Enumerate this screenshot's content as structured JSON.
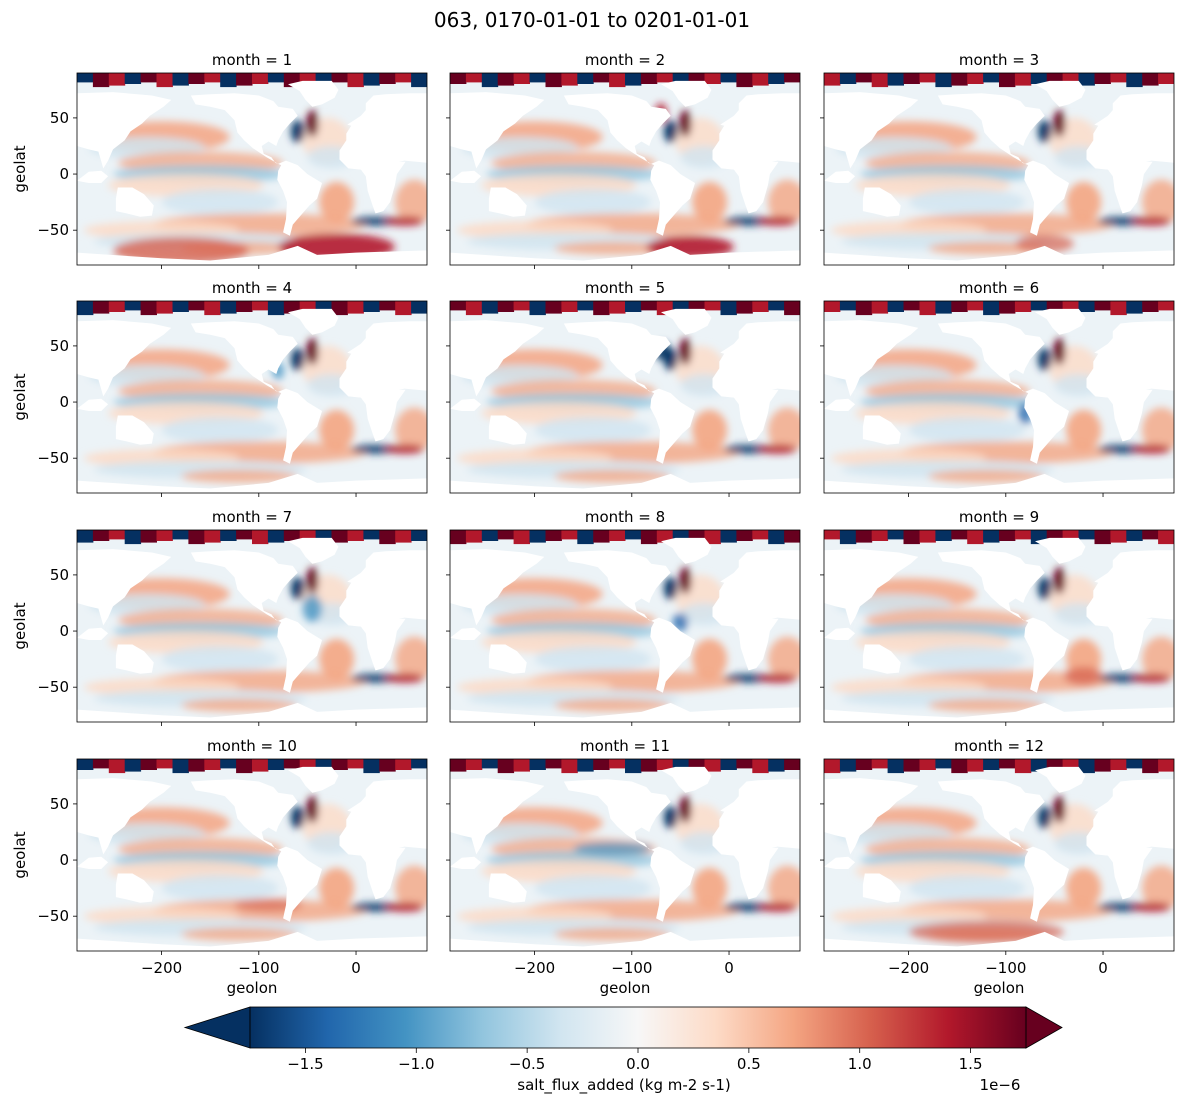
{
  "figure": {
    "suptitle": "063, 0170-01-01 to 0201-01-01"
  },
  "chart_data": {
    "type": "heatmap",
    "layout": "4x3 facet grid (row-major)",
    "panels": [
      {
        "title": "month = 1"
      },
      {
        "title": "month = 2"
      },
      {
        "title": "month = 3"
      },
      {
        "title": "month = 4"
      },
      {
        "title": "month = 5"
      },
      {
        "title": "month = 6"
      },
      {
        "title": "month = 7"
      },
      {
        "title": "month = 8"
      },
      {
        "title": "month = 9"
      },
      {
        "title": "month = 10"
      },
      {
        "title": "month = 11"
      },
      {
        "title": "month = 12"
      }
    ],
    "xlabel": "geolon",
    "ylabel": "geolat",
    "xlim": [
      -287,
      73
    ],
    "ylim": [
      -81,
      90
    ],
    "xticks": [
      -200,
      -100,
      0
    ],
    "xtick_labels": [
      "−200",
      "−100",
      "0"
    ],
    "yticks": [
      -50,
      0,
      50
    ],
    "ytick_labels": [
      "−50",
      "0",
      "50"
    ],
    "colorbar": {
      "label": "salt_flux_added (kg m-2 s-1)",
      "scale_label": "1e−6",
      "vmin": -1.75,
      "vmax": 1.75,
      "extend": "both",
      "cmap": "RdBu_r",
      "ticks": [
        -1.5,
        -1.0,
        -0.5,
        0.0,
        0.5,
        1.0,
        1.5
      ],
      "tick_labels": [
        "−1.5",
        "−1.0",
        "−0.5",
        "0.0",
        "0.5",
        "1.0",
        "1.5"
      ]
    },
    "colors": {
      "neg_extreme": "#053061",
      "neg_strong": "#2166ac",
      "neg_mid": "#4393c3",
      "neg_light": "#92c5de",
      "neg_faint": "#d1e5f0",
      "neutral": "#f7f7f7",
      "pos_faint": "#fddbc7",
      "pos_light": "#f4a582",
      "pos_mid": "#d6604d",
      "pos_strong": "#b2182b",
      "pos_extreme": "#67001f",
      "land": "#ffffff"
    }
  }
}
